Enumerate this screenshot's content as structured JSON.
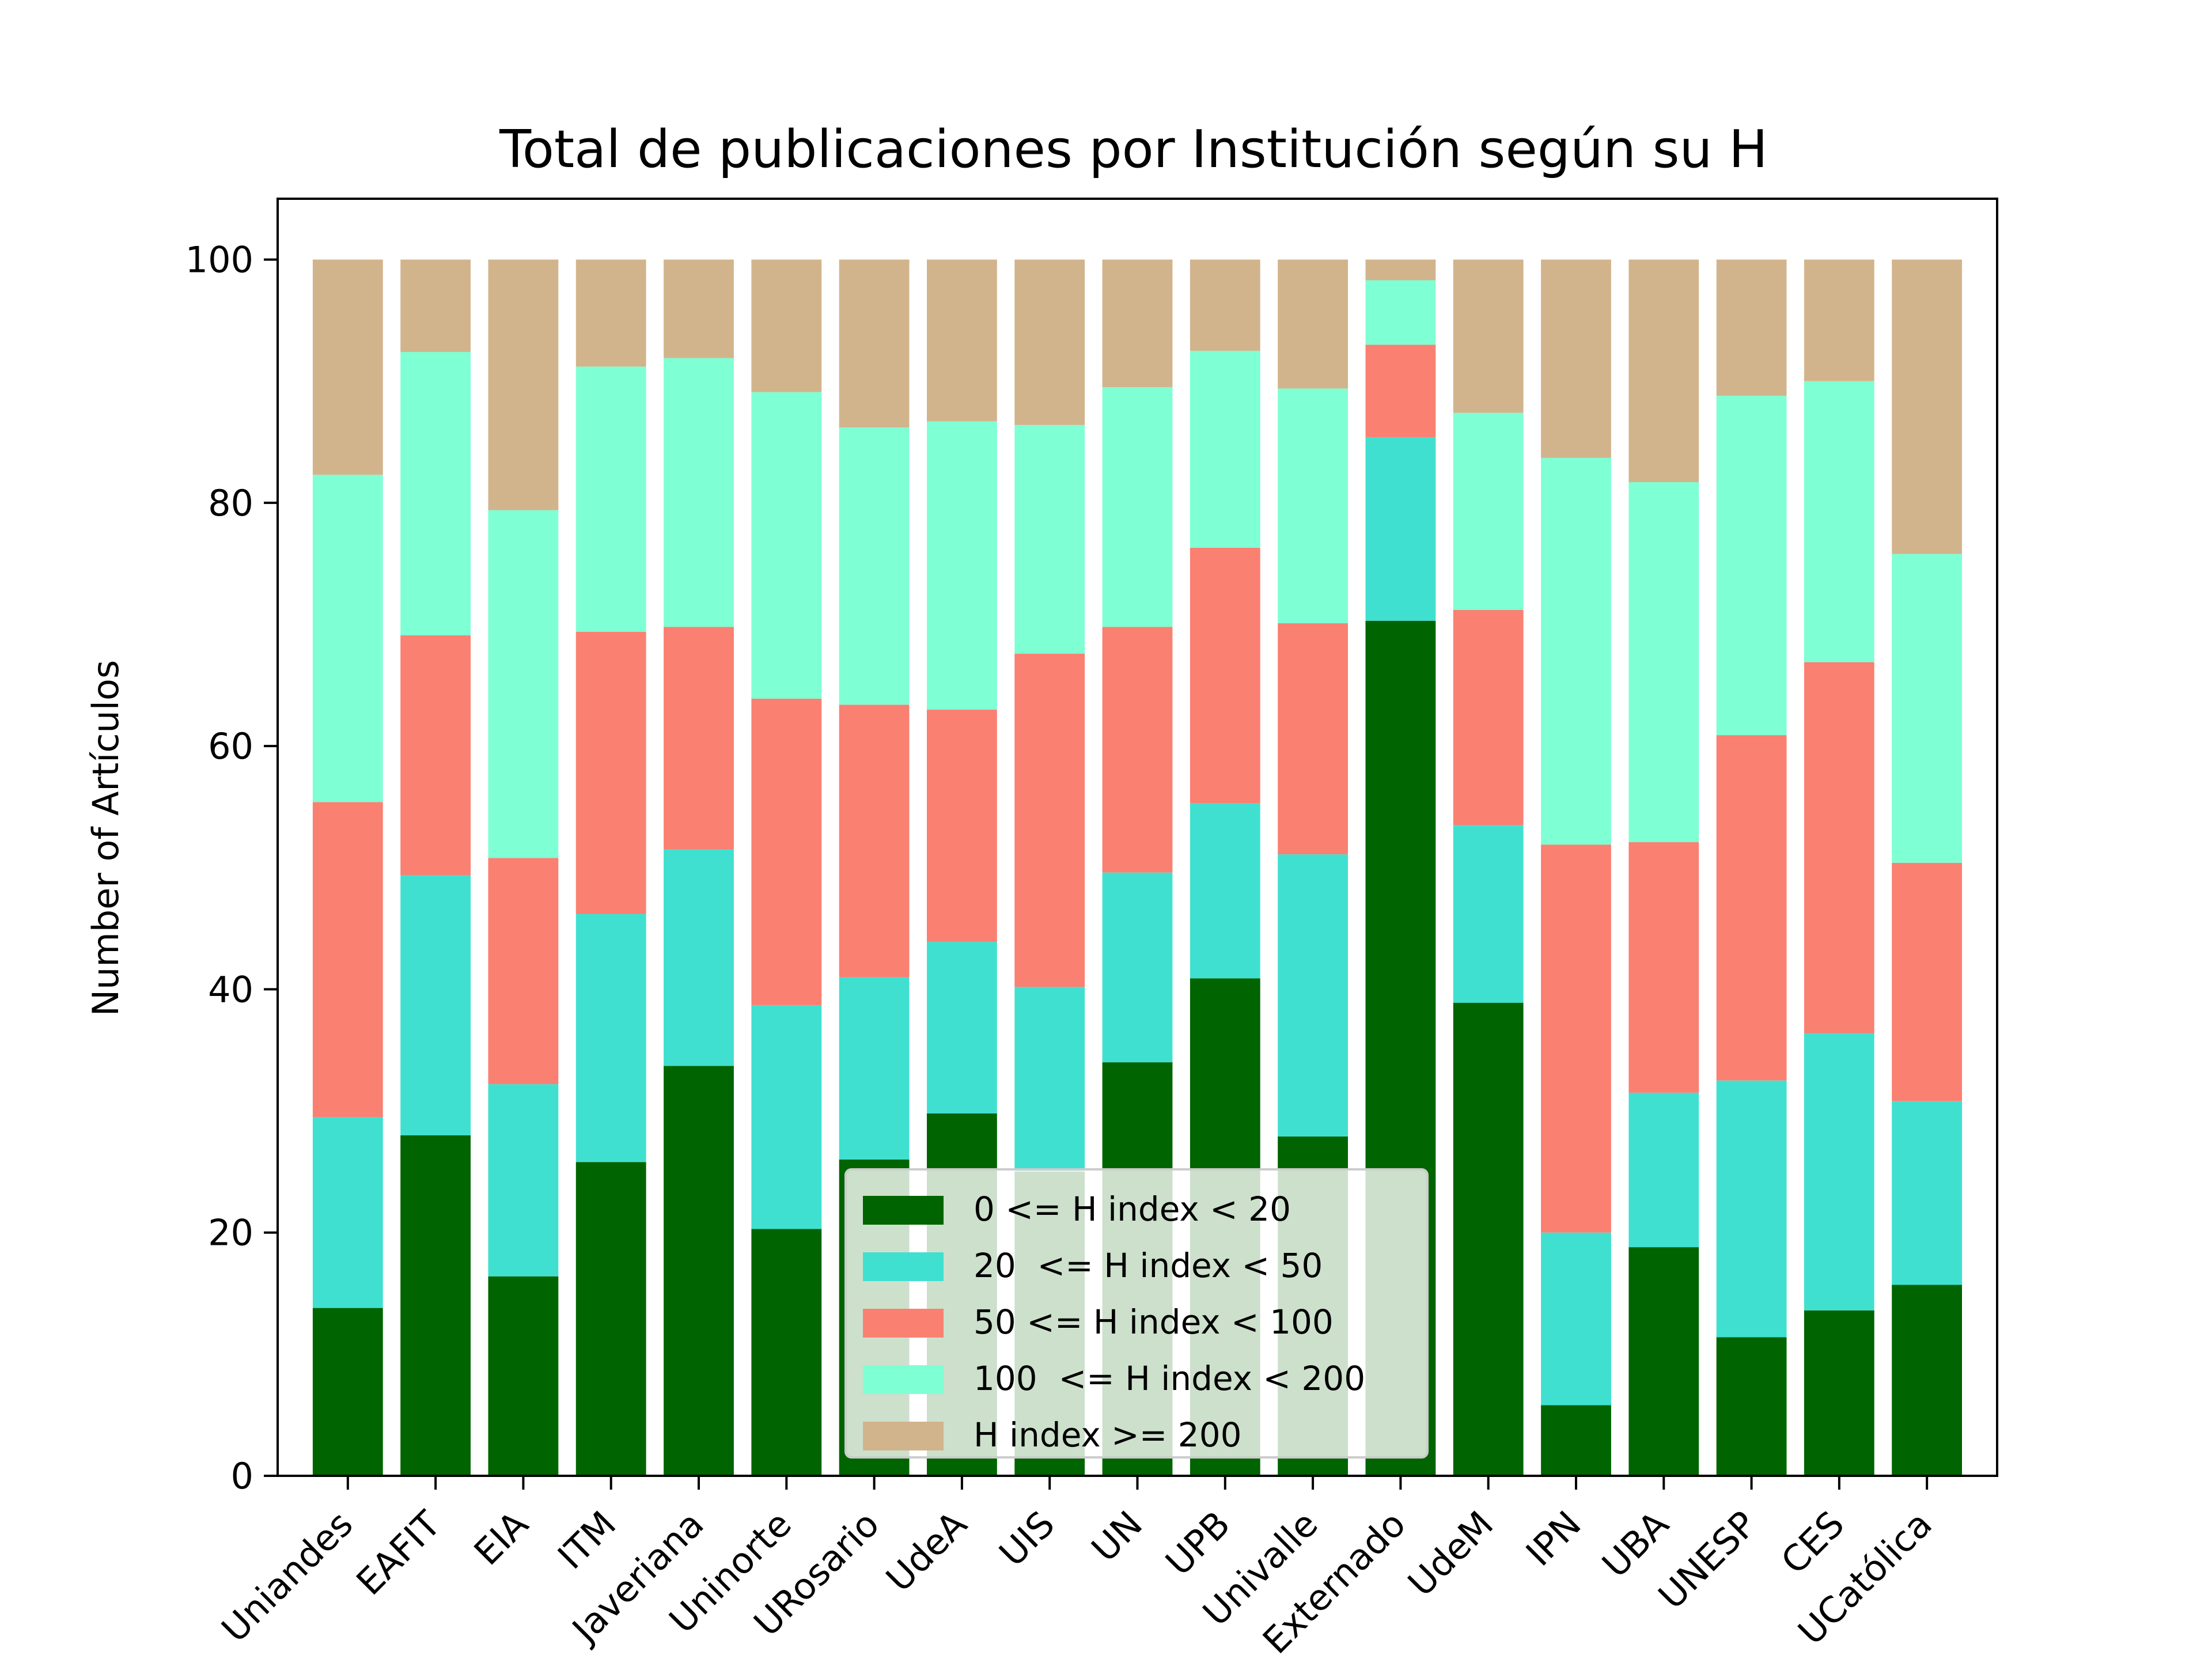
{
  "chart_data": {
    "type": "bar",
    "stacked": true,
    "title": "Total de publicaciones por Institución según su H",
    "xlabel": "",
    "ylabel": "Number of Artículos",
    "ylim": [
      0,
      105
    ],
    "yticks": [
      0,
      20,
      40,
      60,
      80,
      100
    ],
    "categories": [
      "Uniandes",
      "EAFIT",
      "EIA",
      "ITM",
      "Javeriana",
      "Uninorte",
      "URosario",
      "UdeA",
      "UIS",
      "UN",
      "UPB",
      "Univalle",
      "Externado",
      "UdeM",
      "IPN",
      "UBA",
      "UNESP",
      "CES",
      "UCatólica"
    ],
    "series": [
      {
        "name": "0 <= H index < 20",
        "color": "#006400",
        "values": [
          13.8,
          28.0,
          16.4,
          25.8,
          33.7,
          20.3,
          26.0,
          29.8,
          25.0,
          34.0,
          40.9,
          27.9,
          70.3,
          38.9,
          5.8,
          18.8,
          11.4,
          13.6,
          15.7
        ]
      },
      {
        "name": "20  <= H index < 50",
        "color": "#40E0D0",
        "values": [
          15.7,
          21.4,
          15.8,
          20.4,
          17.8,
          18.4,
          15.0,
          14.1,
          15.2,
          15.6,
          14.4,
          23.2,
          15.1,
          14.6,
          14.2,
          12.7,
          21.1,
          22.8,
          15.1
        ]
      },
      {
        "name": "50 <= H index < 100",
        "color": "#FA8072",
        "values": [
          25.9,
          19.7,
          18.6,
          23.2,
          18.3,
          25.2,
          22.4,
          19.1,
          27.4,
          20.2,
          21.0,
          19.0,
          7.6,
          17.7,
          31.9,
          20.6,
          28.4,
          30.5,
          19.6
        ]
      },
      {
        "name": "100  <= H index < 200",
        "color": "#7FFFD4",
        "values": [
          26.9,
          23.3,
          28.6,
          21.8,
          22.1,
          25.2,
          22.8,
          23.7,
          18.8,
          19.7,
          16.2,
          19.3,
          5.3,
          16.2,
          31.8,
          29.6,
          27.9,
          23.1,
          25.4
        ]
      },
      {
        "name": "H index >= 200",
        "color": "#D2B48C",
        "values": [
          17.7,
          7.6,
          20.6,
          8.8,
          8.1,
          10.9,
          13.8,
          13.3,
          13.6,
          10.5,
          7.5,
          10.6,
          1.7,
          12.6,
          16.3,
          18.3,
          11.2,
          10.0,
          24.2
        ]
      }
    ],
    "legend": {
      "placement": "lower-center"
    },
    "grid": false
  }
}
